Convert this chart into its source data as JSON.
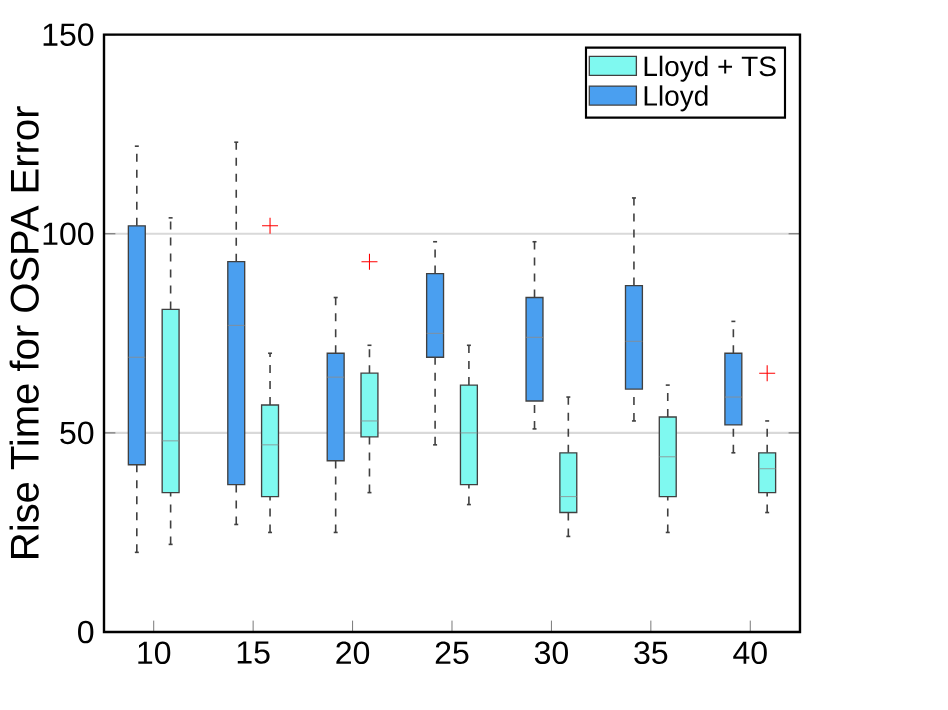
{
  "chart_data": {
    "type": "box",
    "ylabel": "Rise Time for OSPA Error",
    "categories": [
      "10",
      "15",
      "20",
      "25",
      "30",
      "35",
      "40"
    ],
    "ylim": [
      0,
      150
    ],
    "yticks": [
      0,
      50,
      100,
      150
    ],
    "grid": "y",
    "legend": "top right",
    "series": [
      {
        "name": "Lloyd",
        "color": "#4a9ff0",
        "boxes": [
          {
            "low": 20,
            "q1": 42,
            "median": 69,
            "q3": 102,
            "high": 122
          },
          {
            "low": 27,
            "q1": 37,
            "median": 77,
            "q3": 93,
            "high": 123
          },
          {
            "low": 25,
            "q1": 43,
            "median": 64,
            "q3": 70,
            "high": 84
          },
          {
            "low": 47,
            "q1": 69,
            "median": 75,
            "q3": 90,
            "high": 98
          },
          {
            "low": 51,
            "q1": 58,
            "median": 74,
            "q3": 84,
            "high": 98
          },
          {
            "low": 53,
            "q1": 61,
            "median": 73,
            "q3": 87,
            "high": 109
          },
          {
            "low": 45,
            "q1": 52,
            "median": 59,
            "q3": 70,
            "high": 78
          }
        ]
      },
      {
        "name": "Lloyd + TS",
        "color": "#7ff9f0",
        "boxes": [
          {
            "low": 22,
            "q1": 35,
            "median": 48,
            "q3": 81,
            "high": 104
          },
          {
            "low": 25,
            "q1": 34,
            "median": 47,
            "q3": 57,
            "high": 70,
            "outliers": [
              102
            ]
          },
          {
            "low": 35,
            "q1": 49,
            "median": 53,
            "q3": 65,
            "high": 72,
            "outliers": [
              93
            ]
          },
          {
            "low": 32,
            "q1": 37,
            "median": 50,
            "q3": 62,
            "high": 72
          },
          {
            "low": 24,
            "q1": 30,
            "median": 34,
            "q3": 45,
            "high": 59
          },
          {
            "low": 25,
            "q1": 34,
            "median": 44,
            "q3": 54,
            "high": 62
          },
          {
            "low": 30,
            "q1": 35,
            "median": 41,
            "q3": 45,
            "high": 53,
            "outliers": [
              65
            ]
          }
        ]
      }
    ]
  }
}
